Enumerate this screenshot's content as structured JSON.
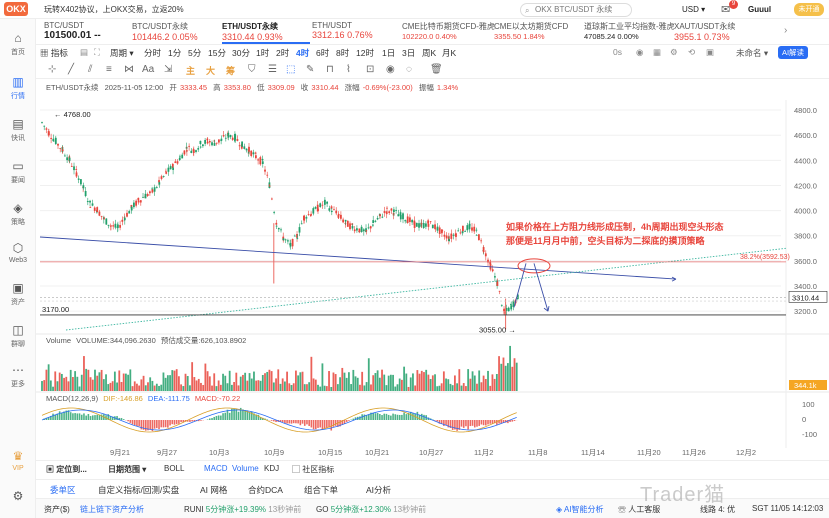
{
  "topbar": {
    "logo": "OKX",
    "promo": "玩转X402协议，上OKX交易，立返20%",
    "search_placeholder": "OKX BTC/USDT 永续",
    "currency": "USD",
    "mail_badge": "9",
    "username": "Guuul",
    "vip_label": "未开通"
  },
  "sidebar": {
    "items": [
      {
        "label": "首页",
        "icon": "home-icon"
      },
      {
        "label": "行情",
        "icon": "chart-icon"
      },
      {
        "label": "快讯",
        "icon": "news-icon"
      },
      {
        "label": "要闻",
        "icon": "document-icon"
      },
      {
        "label": "策略",
        "icon": "strategy-icon"
      },
      {
        "label": "Web3",
        "icon": "web3-icon"
      },
      {
        "label": "资产",
        "icon": "wallet-icon"
      },
      {
        "label": "群聊",
        "icon": "chat-icon"
      },
      {
        "label": "更多",
        "icon": "more-icon"
      },
      {
        "label": "VIP",
        "icon": "vip-icon"
      },
      {
        "label": "",
        "icon": "settings-icon"
      }
    ]
  },
  "tickers": [
    {
      "name": "BTC/USDT",
      "price": "101500.01",
      "change": "--"
    },
    {
      "name": "BTC/USDT永续",
      "price": "101446.2",
      "change": "0.05%"
    },
    {
      "name": "ETH/USDT永续",
      "price": "3310.44",
      "change": "0.93%"
    },
    {
      "name": "ETH/USDT",
      "price": "3312.16",
      "change": "0.76%"
    },
    {
      "name": "CME比特币期货CFD-雅虎",
      "price": "102220.0",
      "change": "0.40%"
    },
    {
      "name": "CME以太坊期货CFD",
      "price": "3355.50",
      "change": "1.84%"
    },
    {
      "name": "道琼斯工业平均指数-雅虎",
      "price": "47085.24",
      "change": "0.00%"
    },
    {
      "name": "XAUT/USDT永续",
      "price": "3955.1",
      "change": "0.73%"
    }
  ],
  "toolbar": {
    "indicator": "指标",
    "period": "周期",
    "timeframes": [
      "分时",
      "1分",
      "5分",
      "15分",
      "30分",
      "1时",
      "2时",
      "4时",
      "6时",
      "8时",
      "12时",
      "1日",
      "3日",
      "周K",
      "月K"
    ],
    "active_timeframe": "4时",
    "countdown": "0s",
    "unselected": "未命名",
    "ai_label": "AI解读",
    "color_tools": [
      "主",
      "大",
      "筹"
    ]
  },
  "chart_header": {
    "title": "ETH/USDT永续",
    "time": "2025-11-05 12:00",
    "open_label": "开",
    "open": "3333.45",
    "high_label": "高",
    "high": "3353.80",
    "low_label": "低",
    "low": "3309.09",
    "close_label": "收",
    "close": "3310.44",
    "change_label": "涨幅",
    "change": "-0.69%(-23.00)",
    "amp_label": "振幅",
    "amp": "1.34%"
  },
  "chart_data": {
    "type": "line",
    "title": "ETH/USDT永续 4H",
    "y_ticks": [
      4800,
      4600,
      4400,
      4200,
      4000,
      3800,
      3600,
      3400,
      3200
    ],
    "ylim": [
      3050,
      4880
    ],
    "x_ticks": [
      "9月21",
      "9月27",
      "10月3",
      "10月9",
      "10月15",
      "10月21",
      "10月27",
      "11月2",
      "11月8",
      "11月14",
      "11月20",
      "11月26",
      "12月2"
    ],
    "price_path": [
      [
        0,
        4700
      ],
      [
        5,
        4620
      ],
      [
        10,
        4550
      ],
      [
        15,
        4480
      ],
      [
        20,
        4400
      ],
      [
        25,
        4300
      ],
      [
        30,
        4180
      ],
      [
        35,
        4050
      ],
      [
        40,
        4010
      ],
      [
        45,
        3930
      ],
      [
        50,
        3880
      ],
      [
        55,
        3860
      ],
      [
        60,
        3950
      ],
      [
        65,
        4020
      ],
      [
        70,
        4080
      ],
      [
        75,
        4120
      ],
      [
        80,
        4150
      ],
      [
        85,
        4220
      ],
      [
        90,
        4300
      ],
      [
        95,
        4350
      ],
      [
        100,
        4420
      ],
      [
        105,
        4500
      ],
      [
        110,
        4480
      ],
      [
        115,
        4530
      ],
      [
        120,
        4550
      ],
      [
        125,
        4540
      ],
      [
        130,
        4560
      ],
      [
        135,
        4600
      ],
      [
        140,
        4580
      ],
      [
        145,
        4520
      ],
      [
        150,
        4480
      ],
      [
        155,
        4430
      ],
      [
        160,
        4380
      ],
      [
        165,
        4200
      ],
      [
        170,
        3900
      ],
      [
        175,
        3780
      ],
      [
        180,
        3720
      ],
      [
        185,
        3800
      ],
      [
        190,
        3950
      ],
      [
        195,
        3980
      ],
      [
        200,
        4020
      ],
      [
        205,
        4060
      ],
      [
        210,
        4010
      ],
      [
        215,
        3960
      ],
      [
        220,
        3900
      ],
      [
        225,
        3870
      ],
      [
        230,
        3850
      ],
      [
        235,
        3830
      ],
      [
        240,
        3900
      ],
      [
        245,
        3950
      ],
      [
        250,
        4000
      ],
      [
        255,
        3990
      ],
      [
        260,
        3960
      ],
      [
        265,
        3930
      ],
      [
        270,
        3890
      ],
      [
        275,
        3880
      ],
      [
        280,
        3900
      ],
      [
        285,
        3870
      ],
      [
        290,
        3820
      ],
      [
        295,
        3780
      ],
      [
        300,
        3820
      ],
      [
        305,
        3850
      ],
      [
        310,
        3870
      ],
      [
        315,
        3830
      ],
      [
        320,
        3700
      ],
      [
        325,
        3560
      ],
      [
        330,
        3420
      ],
      [
        335,
        3180
      ],
      [
        340,
        3240
      ],
      [
        345,
        3310
      ]
    ],
    "high_label": "4768.00",
    "low_label": "3055.00",
    "left_level_label": "3170.00",
    "fib_label": "38.2%(3592.53)",
    "current_price": "3310.44",
    "annotation_line1": "如果价格在上方阻力线形成压制，4h周期出现空头形态",
    "annotation_line2": "那便是11月月中前，空头目标为二探底的摸顶策略",
    "volume_label": "Volume",
    "volume_text": "VOLUME:344,096.2630",
    "volume_forecast": "预估成交量:626,103.8902",
    "volume_tag": "344.1k",
    "macd_label": "MACD(12,26,9)",
    "macd_dif": "DIF:-146.86",
    "macd_dea": "DEA:-111.75",
    "macd_val": "MACD:-70.22",
    "macd_ticks": [
      "100",
      "0",
      "-100"
    ]
  },
  "bottom1": [
    "定位到...",
    "日期范围",
    "BOLL",
    "MACD",
    "Volume",
    "KDJ",
    "社区指标"
  ],
  "bottom2": [
    "委单区",
    "自定义指标/回测/实盘",
    "AI 网格",
    "合约DCA",
    "组合下单",
    "AI分析"
  ],
  "status": {
    "assets": "资产($)",
    "assets_link": "链上链下资产分析",
    "runi": "RUNI",
    "runi_move": "5分钟涨+19.39%",
    "runi_time": "13秒钟前",
    "go": "GO",
    "go_move": "5分钟涨+12.30%",
    "go_time": "13秒钟前",
    "ai_analysis": "AI智能分析",
    "service": "人工客服",
    "online": "线路 4: 优",
    "time": "SGT 11/05 14:12:03"
  },
  "watermark": "Trader猫"
}
